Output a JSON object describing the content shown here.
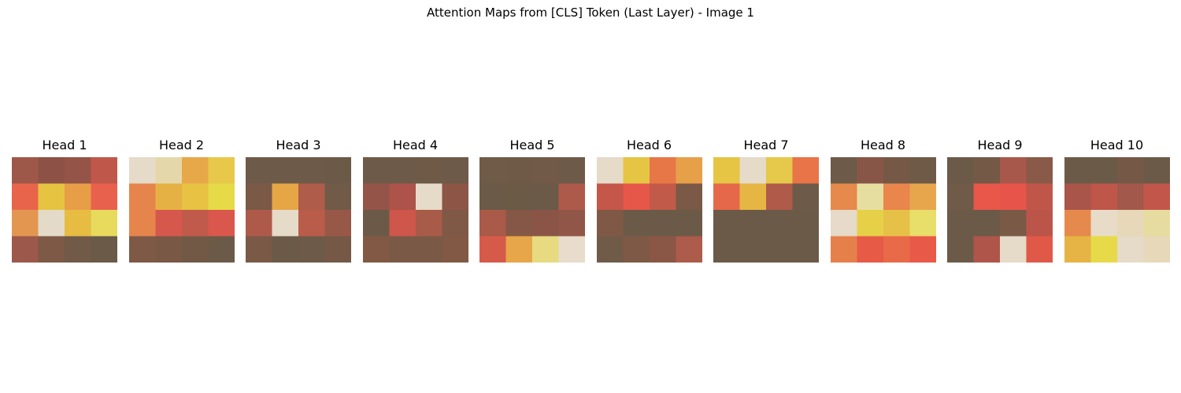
{
  "figure": {
    "title": "Attention Maps from [CLS] Token (Last Layer) - Image 1"
  },
  "chart_data": {
    "type": "heatmap",
    "title": "Attention Maps from [CLS] Token (Last Layer) - Image 1",
    "grid": false,
    "axes_visible": false,
    "panels": [
      {
        "title": "Head 1",
        "cells": [
          [
            "#9e584a",
            "#8d5245",
            "#955448",
            "#bf584a"
          ],
          [
            "#e8654b",
            "#e6c340",
            "#e89d47",
            "#e8614c"
          ],
          [
            "#e39650",
            "#e4dac8",
            "#e6bc43",
            "#e7da5c"
          ],
          [
            "#9b584b",
            "#7d5946",
            "#715a48",
            "#6b5a48"
          ]
        ]
      },
      {
        "title": "Head 2",
        "cells": [
          [
            "#e6dac8",
            "#e4d8aa",
            "#e7a84a",
            "#e8c84b"
          ],
          [
            "#e5854c",
            "#e6b144",
            "#e7c243",
            "#e6da48"
          ],
          [
            "#e5854c",
            "#d6574c",
            "#c05a4a",
            "#d9574c"
          ],
          [
            "#7d5946",
            "#795945",
            "#725946",
            "#6c5a48"
          ]
        ]
      },
      {
        "title": "Head 3",
        "cells": [
          [
            "#6e5a48",
            "#6e5a48",
            "#6e5a48",
            "#6c5a48"
          ],
          [
            "#7a5946",
            "#e6a646",
            "#b05c4a",
            "#715a48"
          ],
          [
            "#ae5a4a",
            "#e6dac8",
            "#ba5c4a",
            "#985848"
          ],
          [
            "#7a5946",
            "#6c5a48",
            "#6e5a48",
            "#755946"
          ]
        ]
      },
      {
        "title": "Head 4",
        "cells": [
          [
            "#6e5a48",
            "#6e5a48",
            "#6f5a48",
            "#6e5a48"
          ],
          [
            "#945548",
            "#ad534a",
            "#e6dac8",
            "#8c5546"
          ],
          [
            "#6c5a48",
            "#cf564a",
            "#a85b48",
            "#805946"
          ],
          [
            "#815945",
            "#7a5946",
            "#7a5946",
            "#815945"
          ]
        ]
      },
      {
        "title": "Head 5",
        "cells": [
          [
            "#705a48",
            "#6f5a48",
            "#715a48",
            "#6e5a48"
          ],
          [
            "#6c5a48",
            "#6a5a46",
            "#6c5a48",
            "#ae5a4a"
          ],
          [
            "#a95a48",
            "#855746",
            "#8a5546",
            "#905647"
          ],
          [
            "#d65a4a",
            "#e7a649",
            "#e8da80",
            "#e8dccc"
          ]
        ]
      },
      {
        "title": "Head 6",
        "cells": [
          [
            "#e6dac8",
            "#e6c544",
            "#e87748",
            "#e7a04a"
          ],
          [
            "#c4564a",
            "#e6574a",
            "#c25a4a",
            "#7a5946"
          ],
          [
            "#805946",
            "#6c5a48",
            "#6c5a48",
            "#6c5a48"
          ],
          [
            "#705a48",
            "#7e5946",
            "#8a5646",
            "#ad5b4a"
          ]
        ]
      },
      {
        "title": "Head 7",
        "cells": [
          [
            "#e6c544",
            "#e6dac8",
            "#e6c84a",
            "#e87448"
          ],
          [
            "#e6684a",
            "#e6b644",
            "#b05a4a",
            "#6e5a48"
          ],
          [
            "#6c5a48",
            "#6c5a48",
            "#6c5a48",
            "#6c5a48"
          ],
          [
            "#6c5a48",
            "#6c5a48",
            "#6c5a48",
            "#6c5a48"
          ]
        ]
      },
      {
        "title": "Head 8",
        "cells": [
          [
            "#6e5a48",
            "#885646",
            "#755946",
            "#6f5a48"
          ],
          [
            "#e5894c",
            "#e6dea0",
            "#e8864c",
            "#e8a64c"
          ],
          [
            "#e6dac8",
            "#e6d048",
            "#e6c147",
            "#e8de6a"
          ],
          [
            "#e6804a",
            "#e65a46",
            "#e86a48",
            "#e95948"
          ]
        ]
      },
      {
        "title": "Head 9",
        "cells": [
          [
            "#6c5a48",
            "#745946",
            "#a8584a",
            "#8a5a48"
          ],
          [
            "#705a48",
            "#e8574a",
            "#e6544a",
            "#c0564a"
          ],
          [
            "#6c5a48",
            "#6c5a48",
            "#7a5946",
            "#bb554a"
          ],
          [
            "#6c5a48",
            "#b0554a",
            "#e6dac8",
            "#e05848"
          ]
        ]
      },
      {
        "title": "Head 10",
        "cells": [
          [
            "#6c5a48",
            "#6c5a48",
            "#755946",
            "#6c5a48"
          ],
          [
            "#aa554a",
            "#be564a",
            "#a2584a",
            "#c2564a"
          ],
          [
            "#e58a4c",
            "#e8dcc8",
            "#e6d8b8",
            "#e6dca0"
          ],
          [
            "#e6b444",
            "#e6da48",
            "#e6dac8",
            "#e6d8b8"
          ]
        ]
      }
    ]
  }
}
